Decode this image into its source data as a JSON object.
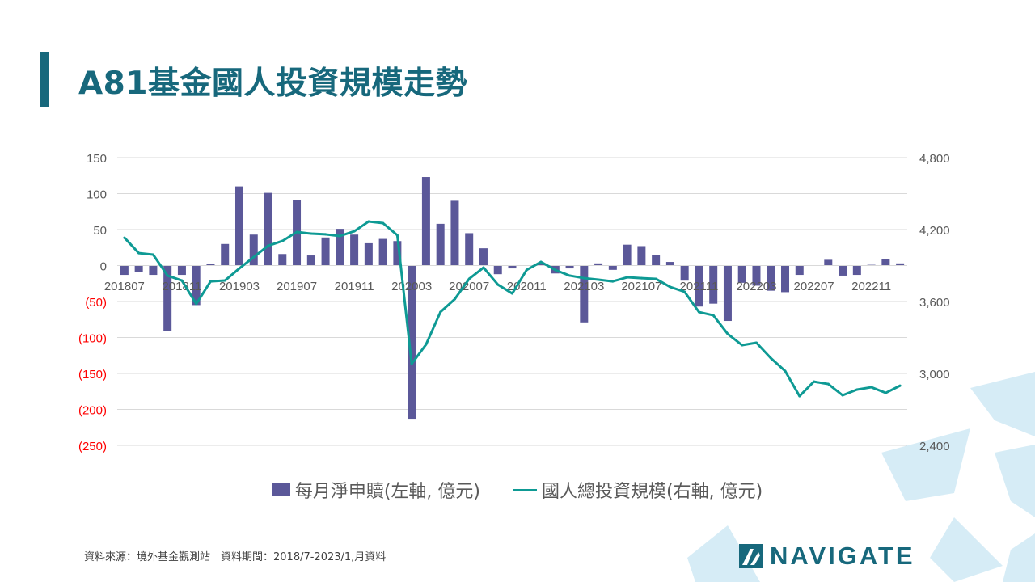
{
  "header": {
    "title": "A81基金國人投資規模走勢"
  },
  "footer": {
    "source": "資料來源：境外基金觀測站　資料期間：2018/7-2023/1,月資料",
    "logo": "NAVIGATE"
  },
  "colors": {
    "bars": "#5b5899",
    "line": "#0e9a94",
    "negative_label": "#ff0000",
    "title": "#17687c"
  },
  "chart_data": {
    "type": "bar+line",
    "title": "",
    "categories": [
      "201807",
      "201808",
      "201809",
      "201810",
      "201811",
      "201812",
      "201901",
      "201902",
      "201903",
      "201904",
      "201905",
      "201906",
      "201907",
      "201908",
      "201909",
      "201910",
      "201911",
      "201912",
      "202001",
      "202002",
      "202003",
      "202004",
      "202005",
      "202006",
      "202007",
      "202008",
      "202009",
      "202010",
      "202011",
      "202012",
      "202101",
      "202102",
      "202103",
      "202104",
      "202105",
      "202106",
      "202107",
      "202108",
      "202109",
      "202110",
      "202111",
      "202112",
      "202201",
      "202202",
      "202203",
      "202204",
      "202205",
      "202206",
      "202207",
      "202208",
      "202209",
      "202210",
      "202211",
      "202212",
      "202301"
    ],
    "x_tick_labels": [
      "201807",
      "201811",
      "201903",
      "201907",
      "201911",
      "202003",
      "202007",
      "202011",
      "202103",
      "202107",
      "202111",
      "202203",
      "202207",
      "202211"
    ],
    "left_axis": {
      "ylim": [
        -250,
        150
      ],
      "ticks": [
        "150",
        "100",
        "50",
        "0",
        "(50)",
        "(100)",
        "(150)",
        "(200)",
        "(250)"
      ]
    },
    "right_axis": {
      "ylim": [
        2400,
        4800
      ],
      "ticks": [
        "4,800",
        "4,200",
        "3,600",
        "3,000",
        "2,400"
      ]
    },
    "grid": true,
    "legend_position": "bottom",
    "series": [
      {
        "name": "每月淨申贖(左軸, 億元)",
        "type": "bar",
        "axis": "left",
        "values": [
          -13,
          -9,
          -13,
          -91,
          -13,
          -55,
          2,
          30,
          110,
          43,
          101,
          16,
          91,
          14,
          39,
          51,
          43,
          31,
          37,
          34,
          -213,
          123,
          58,
          90,
          45,
          24,
          -12,
          -4,
          0,
          3,
          -11,
          -4,
          -79,
          3,
          -6,
          29,
          27,
          15,
          5,
          -21,
          -57,
          -53,
          -77,
          -24,
          -28,
          -35,
          -37,
          -13,
          0,
          8,
          -14,
          -13,
          1,
          9,
          3
        ]
      },
      {
        "name": "國人總投資規模(右軸, 億元)",
        "type": "line",
        "axis": "right",
        "values": [
          4132,
          4004,
          3991,
          3816,
          3775,
          3580,
          3768,
          3775,
          3876,
          3970,
          4065,
          4105,
          4180,
          4166,
          4160,
          4146,
          4186,
          4267,
          4254,
          4153,
          3080,
          3242,
          3512,
          3620,
          3789,
          3883,
          3741,
          3667,
          3863,
          3930,
          3863,
          3816,
          3795,
          3782,
          3768,
          3802,
          3795,
          3789,
          3721,
          3681,
          3512,
          3485,
          3330,
          3236,
          3256,
          3128,
          3020,
          2811,
          2932,
          2912,
          2818,
          2865,
          2885,
          2838,
          2898
        ]
      }
    ]
  }
}
